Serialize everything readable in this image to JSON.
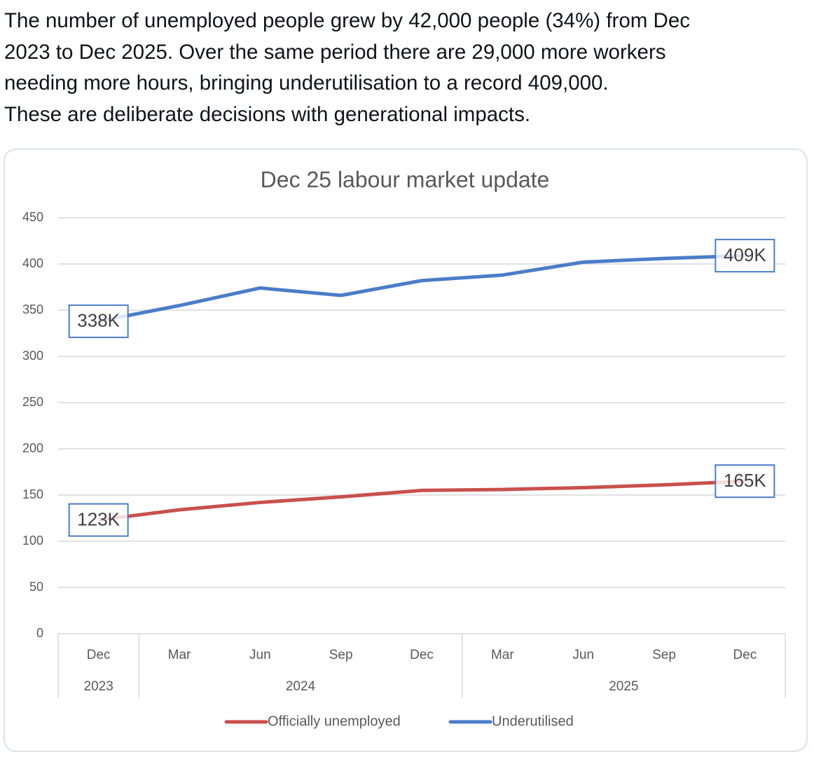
{
  "post_lines": [
    "The number of unemployed people grew by 42,000 people (34%) from Dec",
    "2023 to Dec 2025. Over the same period there are 29,000 more workers",
    "needing more hours, bringing underutilisation to a record 409,000.",
    "These are deliberate decisions with generational impacts."
  ],
  "chart_data": {
    "type": "line",
    "title": "Dec 25 labour market update",
    "categories": [
      "Dec",
      "Mar",
      "Jun",
      "Sep",
      "Dec",
      "Mar",
      "Jun",
      "Sep",
      "Dec"
    ],
    "category_groups": [
      {
        "name": "2023",
        "count": 1
      },
      {
        "name": "2024",
        "count": 4
      },
      {
        "name": "2025",
        "count": 4
      }
    ],
    "series": [
      {
        "name": "Officially unemployed",
        "color": "#c9504c",
        "values": [
          123,
          134,
          142,
          148,
          155,
          156,
          158,
          161,
          165
        ],
        "value_labels": [
          "123K",
          null,
          null,
          null,
          null,
          null,
          null,
          null,
          "165K"
        ]
      },
      {
        "name": "Underutilised",
        "color": "#4a7dc9",
        "values": [
          338,
          355,
          374,
          366,
          382,
          388,
          402,
          406,
          409
        ],
        "value_labels": [
          "338K",
          null,
          null,
          null,
          null,
          null,
          null,
          null,
          "409K"
        ]
      }
    ],
    "ylim": [
      0,
      450
    ],
    "yticks": [
      0,
      50,
      100,
      150,
      200,
      250,
      300,
      350,
      400,
      450
    ],
    "grid": true,
    "legend": "bottom"
  }
}
